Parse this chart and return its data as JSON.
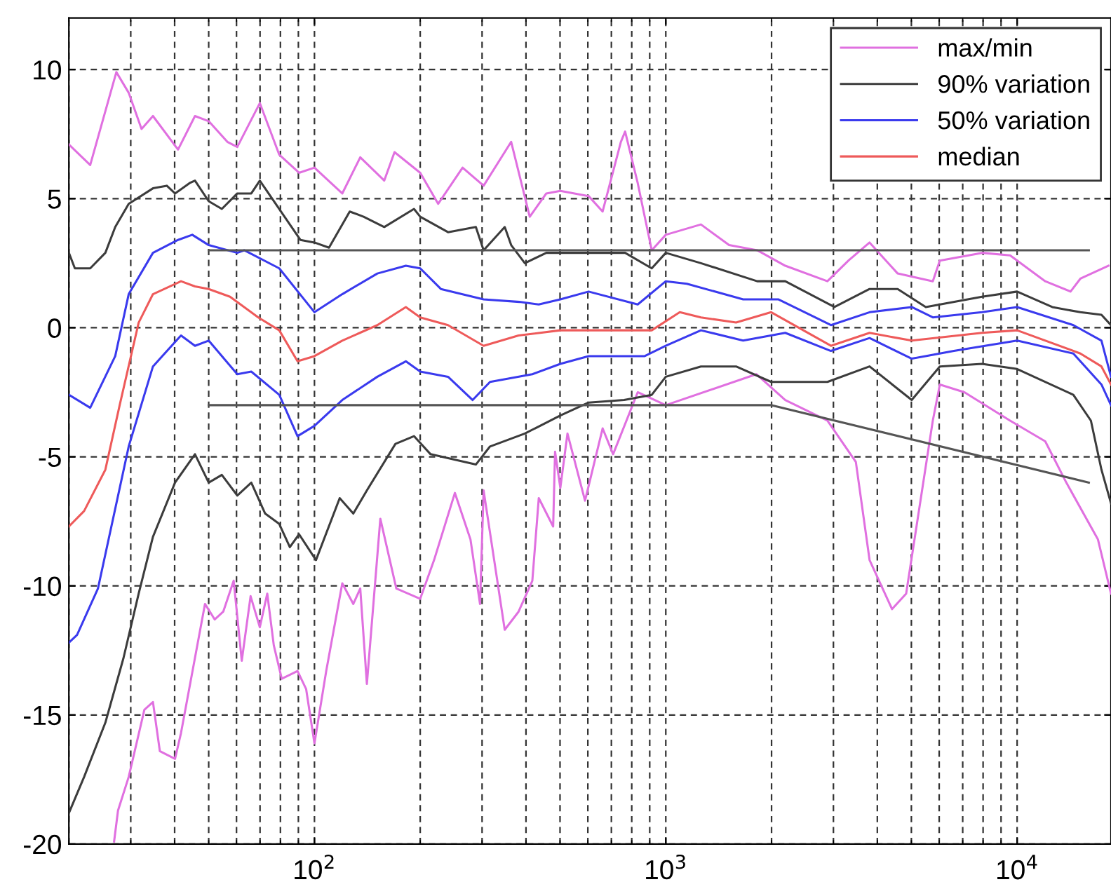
{
  "chart_data": {
    "type": "line",
    "log": "x",
    "xlim": [
      20,
      18500
    ],
    "ylim": [
      -20,
      12
    ],
    "xticks": [
      {
        "value": 100,
        "label": "10$^{2}$"
      },
      {
        "value": 1000,
        "label": "10$^{3}$"
      },
      {
        "value": 10000,
        "label": "10$^{4}$"
      }
    ],
    "yticks": [
      -20,
      -15,
      -10,
      -5,
      0,
      5,
      10
    ],
    "grid": true,
    "legend": "top right",
    "line_style": "solid",
    "marker": "none",
    "series": [
      {
        "name": "max/min",
        "color": "#e070e0",
        "x": [
          20,
          23,
          27.3,
          29.6,
          32.2,
          34.7,
          40.9,
          45.7,
          50,
          56.5,
          60.3,
          69.9,
          79.4,
          90.4,
          100,
          120,
          135,
          158,
          169,
          200,
          225,
          264,
          303,
          363,
          410,
          457,
          501,
          603,
          661,
          745,
          766,
          832,
          912,
          1000,
          1259,
          1514,
          1820,
          2188,
          2884,
          3311,
          3802,
          4571,
          5754,
          6026,
          7943,
          9550,
          12023,
          14190,
          15136,
          18197
        ],
        "values": [
          7.1,
          6.3,
          9.9,
          9.1,
          7.7,
          8.2,
          6.9,
          8.2,
          8.0,
          7.2,
          7.0,
          8.7,
          6.7,
          6.0,
          6.2,
          5.2,
          6.6,
          5.7,
          6.8,
          6.0,
          4.8,
          6.2,
          5.5,
          7.2,
          4.3,
          5.2,
          5.3,
          5.1,
          4.5,
          7.2,
          7.6,
          5.6,
          3.0,
          3.6,
          4.0,
          3.2,
          3.0,
          2.4,
          1.8,
          2.6,
          3.3,
          2.1,
          1.8,
          2.6,
          2.9,
          2.8,
          1.8,
          1.4,
          1.9,
          2.4
        ]
      },
      {
        "color": "#e070e0",
        "x": [
          26.9,
          27.6,
          29.6,
          32.8,
          34.7,
          36.3,
          40.1,
          41.7,
          48.8,
          52.0,
          55.0,
          58.9,
          62.1,
          65.8,
          69.9,
          73.4,
          76.6,
          80.7,
          89.5,
          94.7,
          100,
          108,
          120,
          129,
          135,
          141,
          154,
          171,
          200,
          219,
          251,
          278,
          296,
          303,
          348,
          381,
          417,
          435,
          478,
          484,
          501,
          525,
          589,
          661,
          708,
          832,
          1000,
          1810,
          2188,
          2884,
          3475,
          3802,
          4406,
          4832,
          5754,
          6026,
          7079,
          9550,
          12023,
          13804,
          16982,
          18500
        ],
        "values": [
          -19.9,
          -18.7,
          -17.4,
          -14.8,
          -14.5,
          -16.4,
          -16.7,
          -15.7,
          -10.7,
          -11.3,
          -11.0,
          -9.8,
          -12.9,
          -10.4,
          -11.6,
          -10.3,
          -12.3,
          -13.6,
          -13.3,
          -14.0,
          -16.1,
          -13.3,
          -9.9,
          -10.7,
          -10.1,
          -13.8,
          -7.4,
          -10.1,
          -10.5,
          -9.0,
          -6.4,
          -8.2,
          -10.7,
          -6.3,
          -11.7,
          -11.0,
          -9.8,
          -6.6,
          -7.7,
          -4.8,
          -6.2,
          -4.1,
          -6.7,
          -3.9,
          -4.9,
          -2.5,
          -3.0,
          -1.8,
          -2.8,
          -3.6,
          -5.2,
          -9.0,
          -10.9,
          -10.3,
          -3.6,
          -2.2,
          -2.5,
          -3.6,
          -4.4,
          -6.0,
          -8.2,
          -10.3
        ]
      },
      {
        "name": "90% variation",
        "color": "#3c3c3c",
        "x": [
          20,
          20.8,
          23,
          25.4,
          27.1,
          29.6,
          34.7,
          38.0,
          40.1,
          44.1,
          45.7,
          50,
          54.5,
          60.3,
          66.1,
          69.9,
          79.4,
          91.2,
          100,
          110,
          126,
          138,
          158,
          192,
          200,
          240,
          288,
          303,
          348,
          363,
          397,
          457,
          501,
          603,
          766,
          912,
          1000,
          1259,
          1820,
          2188,
          3020,
          3802,
          4571,
          5495,
          7943,
          10000,
          12589,
          15136,
          17378,
          18500
        ],
        "values": [
          2.9,
          2.3,
          2.3,
          2.9,
          3.9,
          4.8,
          5.4,
          5.5,
          5.2,
          5.6,
          5.7,
          4.9,
          4.6,
          5.2,
          5.2,
          5.7,
          4.6,
          3.4,
          3.3,
          3.1,
          4.5,
          4.3,
          3.9,
          4.6,
          4.3,
          3.7,
          3.9,
          3.0,
          3.9,
          3.2,
          2.5,
          2.9,
          2.9,
          2.9,
          2.9,
          2.3,
          2.9,
          2.5,
          1.8,
          1.8,
          0.8,
          1.5,
          1.5,
          0.8,
          1.2,
          1.4,
          0.8,
          0.6,
          0.5,
          0.1
        ]
      },
      {
        "color": "#3c3c3c",
        "x": [
          20,
          22.1,
          25.4,
          28.6,
          31.6,
          34.7,
          40.1,
          45.7,
          50,
          54.5,
          60.3,
          66.1,
          72.4,
          79.4,
          85.1,
          90.4,
          101,
          118,
          129,
          141,
          170,
          192,
          214,
          288,
          316,
          397,
          501,
          603,
          761,
          912,
          1000,
          1259,
          1585,
          1995,
          2188,
          2884,
          3802,
          5012,
          6026,
          7943,
          10000,
          14454,
          16218,
          17378,
          18500
        ],
        "values": [
          -18.8,
          -17.4,
          -15.3,
          -12.8,
          -10.3,
          -8.1,
          -6.0,
          -4.9,
          -6.0,
          -5.7,
          -6.5,
          -6.0,
          -7.2,
          -7.6,
          -8.5,
          -8.0,
          -9.0,
          -6.6,
          -7.2,
          -6.3,
          -4.5,
          -4.2,
          -4.9,
          -5.3,
          -4.6,
          -4.1,
          -3.4,
          -2.9,
          -2.8,
          -2.6,
          -1.9,
          -1.5,
          -1.5,
          -2.1,
          -2.1,
          -2.1,
          -1.5,
          -2.8,
          -1.5,
          -1.4,
          -1.6,
          -2.6,
          -3.6,
          -5.5,
          -6.8
        ]
      },
      {
        "name": "50% variation",
        "color": "#3a3aee",
        "x": [
          20,
          23,
          27.1,
          29.6,
          34.7,
          40.9,
          44.9,
          50,
          60.3,
          63.1,
          79.4,
          100,
          120,
          151,
          182,
          200,
          229,
          303,
          383,
          435,
          501,
          603,
          832,
          1000,
          1148,
          1660,
          2089,
          2951,
          3802,
          5012,
          5754,
          7943,
          10000,
          14454,
          17378,
          18500
        ],
        "values": [
          -2.6,
          -3.1,
          -1.1,
          1.3,
          2.9,
          3.4,
          3.6,
          3.2,
          2.9,
          3.0,
          2.3,
          0.6,
          1.3,
          2.1,
          2.4,
          2.3,
          1.5,
          1.1,
          1.0,
          0.9,
          1.1,
          1.4,
          0.9,
          1.8,
          1.7,
          1.1,
          1.1,
          0.1,
          0.6,
          0.8,
          0.4,
          0.6,
          0.8,
          0.1,
          -0.5,
          -1.9
        ]
      },
      {
        "color": "#3a3aee",
        "x": [
          20,
          21.1,
          24.2,
          29.6,
          34.7,
          41.7,
          45.7,
          50,
          60.3,
          66.1,
          79.4,
          89.5,
          100,
          120,
          151,
          182,
          200,
          240,
          282,
          316,
          417,
          501,
          603,
          871,
          1000,
          1259,
          1660,
          2188,
          2951,
          3802,
          5012,
          6607,
          10000,
          14454,
          17378,
          18500
        ],
        "values": [
          -12.2,
          -11.9,
          -10.1,
          -4.6,
          -1.5,
          -0.3,
          -0.7,
          -0.5,
          -1.8,
          -1.7,
          -2.6,
          -4.2,
          -3.8,
          -2.8,
          -1.9,
          -1.3,
          -1.7,
          -1.9,
          -2.8,
          -2.1,
          -1.8,
          -1.4,
          -1.1,
          -1.1,
          -0.7,
          -0.1,
          -0.5,
          -0.2,
          -0.9,
          -0.4,
          -1.2,
          -0.9,
          -0.5,
          -1.0,
          -2.2,
          -3.0
        ]
      },
      {
        "name": "median",
        "color": "#ee5a5a",
        "x": [
          20,
          22.1,
          25.4,
          27.9,
          31.6,
          34.7,
          41.7,
          45.7,
          50,
          57.5,
          69.2,
          79.4,
          89.5,
          100,
          120,
          151,
          182,
          200,
          240,
          303,
          381,
          501,
          661,
          912,
          1096,
          1259,
          1585,
          1995,
          2951,
          3802,
          5012,
          7943,
          10000,
          15136,
          17378,
          18500
        ],
        "values": [
          -7.7,
          -7.1,
          -5.5,
          -3.0,
          0.2,
          1.3,
          1.8,
          1.6,
          1.5,
          1.2,
          0.4,
          -0.1,
          -1.3,
          -1.1,
          -0.5,
          0.1,
          0.8,
          0.4,
          0.1,
          -0.7,
          -0.3,
          -0.1,
          -0.1,
          -0.1,
          0.6,
          0.4,
          0.2,
          0.6,
          -0.7,
          -0.2,
          -0.5,
          -0.2,
          -0.1,
          -1.0,
          -1.5,
          -2.2
        ]
      },
      {
        "color": "#555555",
        "x": [
          50,
          16000
        ],
        "values": [
          3,
          3
        ]
      },
      {
        "color": "#555555",
        "x": [
          50,
          2000,
          16000
        ],
        "values": [
          -3,
          -3,
          -6
        ]
      }
    ]
  }
}
